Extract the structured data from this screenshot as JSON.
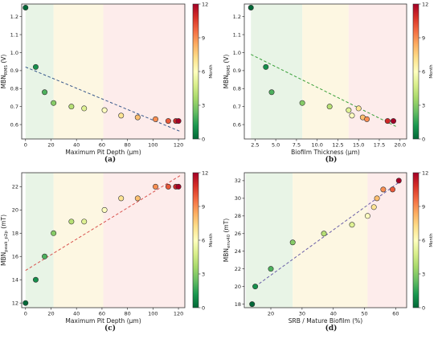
{
  "colorbar": {
    "label": "Month",
    "ticks": [
      "0",
      "3",
      "6",
      "9",
      "12"
    ],
    "colors": [
      "#006837",
      "#1a9850",
      "#66bd63",
      "#a6d96a",
      "#d9ef8b",
      "#ffffbf",
      "#fee08b",
      "#fdae61",
      "#f46d43",
      "#d73027",
      "#a50026"
    ]
  },
  "regions": [
    {
      "name": "green",
      "color": "#e8f4e6"
    },
    {
      "name": "yellow",
      "color": "#fdf7e2"
    },
    {
      "name": "red",
      "color": "#fdeceb"
    }
  ],
  "chart_data": [
    {
      "type": "scatter",
      "panel": "(a)",
      "xlabel": "Maximum Pit Depth (μm)",
      "ylabel_main": "MBN",
      "ylabel_sub": "RMS",
      "ylabel_unit": "(V)",
      "xlim": [
        -3,
        125
      ],
      "ylim": [
        0.52,
        1.27
      ],
      "xticks": [
        0,
        20,
        40,
        60,
        80,
        100,
        120
      ],
      "yticks": [
        0.6,
        0.7,
        0.8,
        0.9,
        1.0,
        1.1,
        1.2
      ],
      "ytick_decimals": 1,
      "region_bounds": [
        0,
        22,
        61,
        125
      ],
      "x": [
        0,
        8,
        15,
        22,
        36,
        46,
        62,
        75,
        88,
        102,
        112,
        118,
        120
      ],
      "y": [
        1.25,
        0.92,
        0.78,
        0.72,
        0.7,
        0.69,
        0.68,
        0.65,
        0.64,
        0.63,
        0.62,
        0.62,
        0.62
      ],
      "month": [
        0,
        1,
        2,
        3,
        4,
        5,
        6,
        7,
        8,
        9,
        10,
        11,
        12
      ],
      "fit": {
        "x": [
          0,
          122
        ],
        "y": [
          0.92,
          0.56
        ],
        "color": "#3a5a8c"
      }
    },
    {
      "type": "scatter",
      "panel": "(b)",
      "xlabel": "Biofilm Thickness (μm)",
      "ylabel_main": "MBN",
      "ylabel_sub": "RMS",
      "ylabel_unit": "(V)",
      "xlim": [
        1.2,
        20.8
      ],
      "ylim": [
        0.52,
        1.27
      ],
      "xticks": [
        2.5,
        5.0,
        7.5,
        10.0,
        12.5,
        15.0,
        17.5,
        20.0
      ],
      "yticks": [
        0.6,
        0.7,
        0.8,
        0.9,
        1.0,
        1.1,
        1.2
      ],
      "ytick_decimals": 1,
      "region_bounds": [
        2.0,
        8.2,
        13.8,
        20.8
      ],
      "x": [
        2.0,
        3.8,
        4.5,
        8.2,
        11.5,
        13.8,
        14.2,
        15.0,
        15.5,
        16.0,
        18.5,
        19.2
      ],
      "y": [
        1.25,
        0.92,
        0.78,
        0.72,
        0.7,
        0.68,
        0.65,
        0.69,
        0.64,
        0.63,
        0.62,
        0.62
      ],
      "month": [
        0,
        1,
        2,
        3,
        4,
        5,
        6,
        7,
        8,
        9,
        11,
        12
      ],
      "fit": {
        "x": [
          2.0,
          19.5
        ],
        "y": [
          0.99,
          0.59
        ],
        "color": "#3aa03a"
      }
    },
    {
      "type": "scatter",
      "panel": "(c)",
      "xlabel": "Maximum Pit Depth (μm)",
      "ylabel_main": "MBN",
      "ylabel_sub": "peak_p2p",
      "ylabel_unit": "(mT)",
      "xlim": [
        -3,
        125
      ],
      "ylim": [
        11.6,
        23.2
      ],
      "xticks": [
        0,
        20,
        40,
        60,
        80,
        100,
        120
      ],
      "yticks": [
        12,
        14,
        16,
        18,
        20,
        22
      ],
      "ytick_decimals": 0,
      "region_bounds": [
        0,
        22,
        61,
        125
      ],
      "x": [
        0,
        8,
        15,
        22,
        36,
        46,
        62,
        75,
        88,
        102,
        112,
        118,
        120
      ],
      "y": [
        12,
        14,
        16,
        18,
        19,
        19,
        20,
        21,
        21,
        22,
        22,
        22,
        22
      ],
      "month": [
        0,
        1,
        2,
        3,
        4,
        5,
        6,
        7,
        8,
        9,
        10,
        11,
        12
      ],
      "fit": {
        "x": [
          0,
          122
        ],
        "y": [
          14.8,
          23.0
        ],
        "color": "#d9534f"
      }
    },
    {
      "type": "scatter",
      "panel": "(d)",
      "xlabel": "SRB / Mature Biofilm (%)",
      "ylabel_main": "MBN",
      "ylabel_sub": "env40",
      "ylabel_unit": "(mT)",
      "xlim": [
        11.5,
        63.5
      ],
      "ylim": [
        17.6,
        32.9
      ],
      "xticks": [
        20,
        30,
        40,
        50,
        60
      ],
      "yticks": [
        18,
        20,
        22,
        24,
        26,
        28,
        30,
        32
      ],
      "ytick_decimals": 0,
      "region_bounds": [
        12,
        27,
        51,
        63.5
      ],
      "x": [
        14,
        15,
        20,
        27,
        37,
        46,
        51,
        53,
        54,
        56,
        59,
        61
      ],
      "y": [
        18,
        20,
        22,
        25,
        26,
        27,
        28,
        29,
        30,
        31,
        31,
        32
      ],
      "month": [
        0,
        1,
        2,
        3,
        4,
        5,
        6,
        7,
        8,
        9,
        10,
        12
      ],
      "fit": {
        "x": [
          15,
          61
        ],
        "y": [
          20.0,
          31.8
        ],
        "color": "#6a5fa8"
      }
    }
  ]
}
